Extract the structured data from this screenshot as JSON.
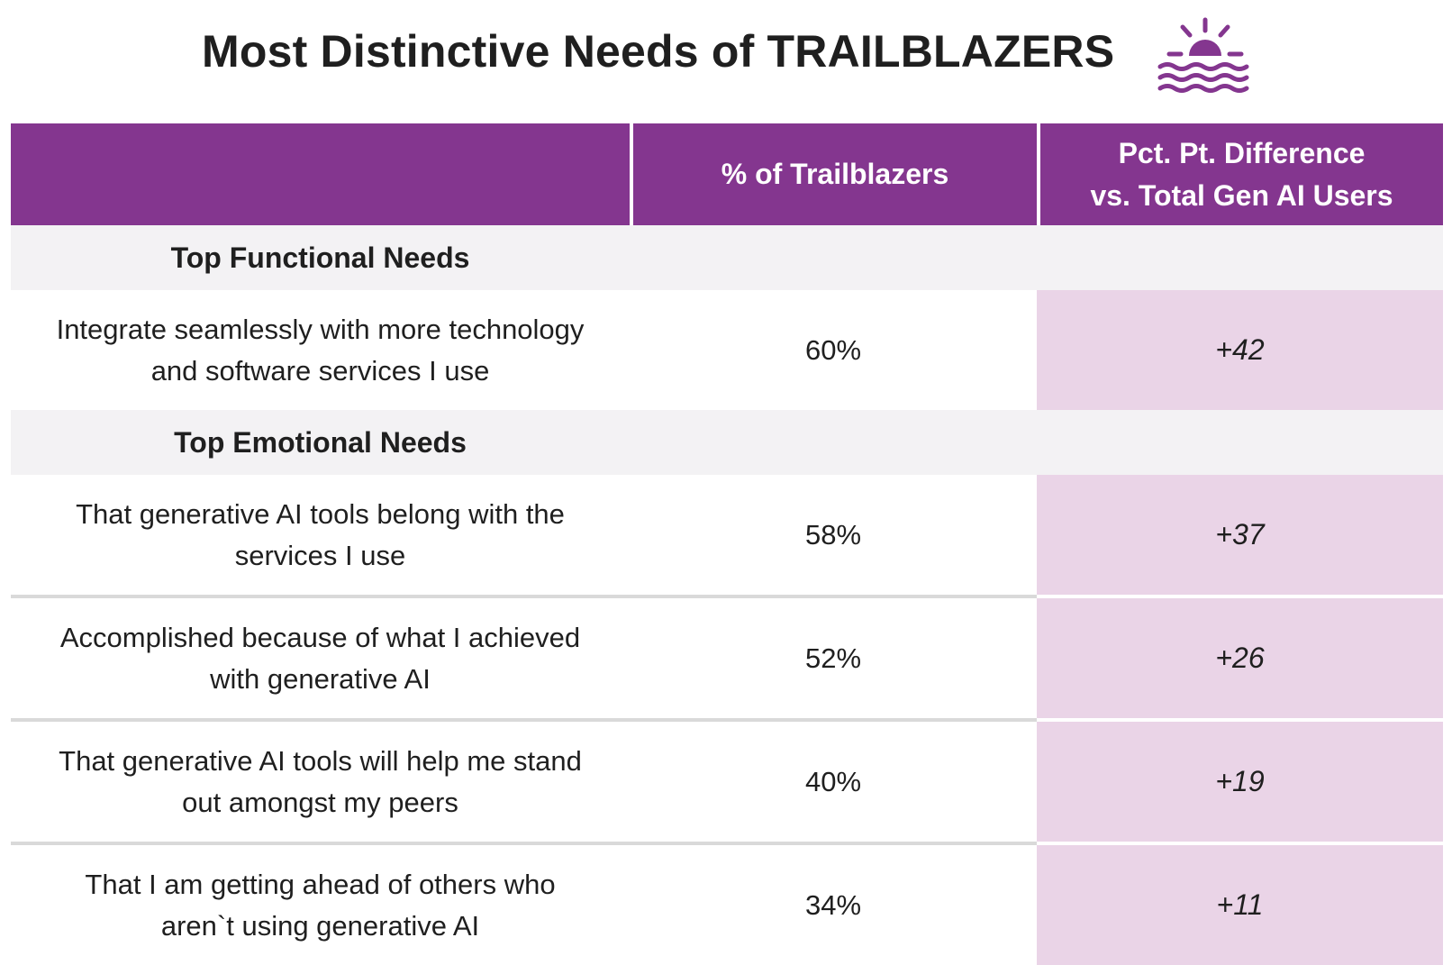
{
  "title": "Most Distinctive Needs of TRAILBLAZERS",
  "icon": "sunset-over-water-icon",
  "colors": {
    "header_bg": "#84368f",
    "highlight_bg": "#ead4e7",
    "section_bg": "#f3f2f4",
    "icon": "#84368f"
  },
  "table": {
    "columns": [
      "",
      "% of Trailblazers",
      "Pct. Pt. Difference\nvs. Total Gen AI Users"
    ],
    "column_1_label": "% of Trailblazers",
    "column_2_label_line1": "Pct. Pt. Difference",
    "column_2_label_line2": "vs. Total Gen AI Users",
    "sections": [
      {
        "heading": "Top Functional Needs",
        "rows": [
          {
            "need_line1": "Integrate seamlessly with more technology",
            "need_line2": "and software services I use",
            "pct": "60%",
            "diff": "+42"
          }
        ]
      },
      {
        "heading": "Top Emotional Needs",
        "rows": [
          {
            "need_line1": "That generative AI tools belong with the",
            "need_line2": "services I use",
            "pct": "58%",
            "diff": "+37"
          },
          {
            "need_line1": "Accomplished because of what I achieved",
            "need_line2": "with generative AI",
            "pct": "52%",
            "diff": "+26"
          },
          {
            "need_line1": "That generative AI tools will help me stand",
            "need_line2": "out amongst my peers",
            "pct": "40%",
            "diff": "+19"
          },
          {
            "need_line1": "That I am getting ahead of others who",
            "need_line2": "aren`t using generative AI",
            "pct": "34%",
            "diff": "+11"
          }
        ]
      }
    ]
  },
  "chart_data": {
    "type": "table",
    "title": "Most Distinctive Needs of TRAILBLAZERS",
    "columns": [
      "",
      "% of Trailblazers",
      "Pct. Pt. Difference vs. Total Gen AI Users"
    ],
    "rows": [
      {
        "section": "Top Functional Needs",
        "need": "Integrate seamlessly with more technology and software services I use",
        "pct_of_trailblazers": 60,
        "pct_pt_difference": 42
      },
      {
        "section": "Top Emotional Needs",
        "need": "That generative AI tools belong with the services I use",
        "pct_of_trailblazers": 58,
        "pct_pt_difference": 37
      },
      {
        "section": "Top Emotional Needs",
        "need": "Accomplished because of what I achieved with generative AI",
        "pct_of_trailblazers": 52,
        "pct_pt_difference": 26
      },
      {
        "section": "Top Emotional Needs",
        "need": "That generative AI tools will help me stand out amongst my peers",
        "pct_of_trailblazers": 40,
        "pct_pt_difference": 19
      },
      {
        "section": "Top Emotional Needs",
        "need": "That I am getting ahead of others who aren`t using generative AI",
        "pct_of_trailblazers": 34,
        "pct_pt_difference": 11
      }
    ]
  }
}
